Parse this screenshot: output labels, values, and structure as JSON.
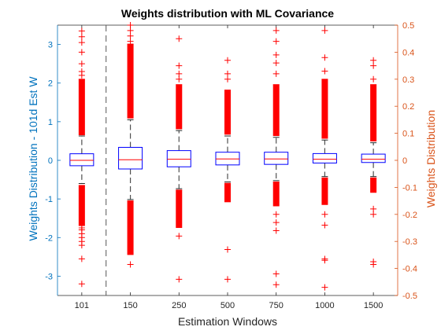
{
  "chart_data": {
    "type": "box",
    "title": "Weights distribution with ML Covariance",
    "xlabel": "Estimation Windows",
    "ylabel_left": "Weights Distribution - 101d Est W",
    "ylabel_right": "Weights Distribution",
    "categories": [
      "101",
      "150",
      "250",
      "500",
      "750",
      "1000",
      "1500"
    ],
    "ylim_left": [
      -3.5,
      3.5
    ],
    "yticks_left": [
      -3,
      -2,
      -1,
      0,
      1,
      2,
      3
    ],
    "ylim_right": [
      -0.5,
      0.5
    ],
    "yticks_right": [
      -0.5,
      -0.4,
      -0.3,
      -0.2,
      -0.1,
      0,
      0.1,
      0.2,
      0.3,
      0.4,
      0.5
    ],
    "divider_after_category": "101",
    "boxes": [
      {
        "category": "101",
        "axis": "left",
        "q1": -0.14,
        "median": 0.0,
        "q3": 0.17,
        "whisker_low": -0.6,
        "whisker_high": 0.63,
        "dense_outliers": [
          [
            -1.7,
            -0.65
          ],
          [
            0.65,
            2.1
          ]
        ],
        "outliers": [
          -3.2,
          -2.55,
          -2.2,
          -2.1,
          -2.0,
          -1.9,
          -1.8,
          -1.75,
          2.2,
          2.3,
          2.5,
          2.8,
          3.05,
          3.2,
          3.35
        ]
      },
      {
        "category": "150",
        "axis": "right",
        "q1": -0.032,
        "median": 0.002,
        "q3": 0.048,
        "whisker_low": -0.145,
        "whisker_high": 0.15,
        "dense_outliers": [
          [
            -0.35,
            -0.15
          ],
          [
            0.155,
            0.43
          ]
        ],
        "outliers": [
          -0.385,
          0.44,
          0.46,
          0.48,
          0.5
        ]
      },
      {
        "category": "250",
        "axis": "right",
        "q1": -0.024,
        "median": 0.004,
        "q3": 0.036,
        "whisker_low": -0.105,
        "whisker_high": 0.11,
        "dense_outliers": [
          [
            -0.25,
            -0.11
          ],
          [
            0.115,
            0.28
          ]
        ],
        "outliers": [
          -0.44,
          -0.28,
          0.3,
          0.32,
          0.35,
          0.45
        ]
      },
      {
        "category": "500",
        "axis": "right",
        "q1": -0.017,
        "median": 0.005,
        "q3": 0.03,
        "whisker_low": -0.08,
        "whisker_high": 0.09,
        "dense_outliers": [
          [
            -0.155,
            -0.085
          ],
          [
            0.095,
            0.26
          ]
        ],
        "outliers": [
          -0.44,
          -0.33,
          0.3,
          0.32,
          0.37
        ]
      },
      {
        "category": "750",
        "axis": "right",
        "q1": -0.015,
        "median": 0.005,
        "q3": 0.03,
        "whisker_low": -0.075,
        "whisker_high": 0.085,
        "dense_outliers": [
          [
            -0.17,
            -0.08
          ],
          [
            0.09,
            0.28
          ]
        ],
        "outliers": [
          -0.46,
          -0.42,
          -0.26,
          -0.23,
          -0.2,
          0.32,
          0.36,
          0.39,
          0.44,
          0.48
        ]
      },
      {
        "category": "1000",
        "axis": "right",
        "q1": -0.01,
        "median": 0.004,
        "q3": 0.025,
        "whisker_low": -0.06,
        "whisker_high": 0.075,
        "dense_outliers": [
          [
            -0.165,
            -0.065
          ],
          [
            0.08,
            0.3
          ]
        ],
        "outliers": [
          -0.47,
          -0.37,
          -0.365,
          -0.24,
          -0.2,
          0.33,
          0.38,
          0.48
        ]
      },
      {
        "category": "1500",
        "axis": "right",
        "q1": -0.008,
        "median": 0.004,
        "q3": 0.023,
        "whisker_low": -0.06,
        "whisker_high": 0.065,
        "dense_outliers": [
          [
            -0.12,
            -0.065
          ],
          [
            0.07,
            0.28
          ]
        ],
        "outliers": [
          -0.385,
          -0.375,
          -0.2,
          -0.18,
          0.3,
          0.35,
          0.37
        ]
      }
    ],
    "colors": {
      "box": "#0000ff",
      "median": "#ff0000",
      "whisker": "#505050",
      "outlier": "#ff0000",
      "left_axis": "#0072bd",
      "right_axis": "#d95319",
      "axis_black": "#262626"
    },
    "grid": false
  }
}
